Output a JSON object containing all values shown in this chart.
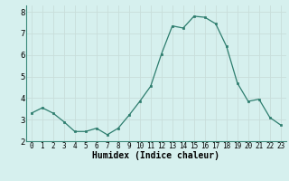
{
  "x": [
    0,
    1,
    2,
    3,
    4,
    5,
    6,
    7,
    8,
    9,
    10,
    11,
    12,
    13,
    14,
    15,
    16,
    17,
    18,
    19,
    20,
    21,
    22,
    23
  ],
  "y": [
    3.3,
    3.55,
    3.3,
    2.9,
    2.45,
    2.45,
    2.6,
    2.3,
    2.6,
    3.2,
    3.85,
    4.55,
    6.05,
    7.35,
    7.25,
    7.8,
    7.75,
    7.45,
    6.4,
    4.7,
    3.85,
    3.95,
    3.1,
    2.75
  ],
  "xlabel": "Humidex (Indice chaleur)",
  "ylim": [
    2.0,
    8.3
  ],
  "xlim": [
    -0.5,
    23.5
  ],
  "yticks": [
    2,
    3,
    4,
    5,
    6,
    7,
    8
  ],
  "xticks": [
    0,
    1,
    2,
    3,
    4,
    5,
    6,
    7,
    8,
    9,
    10,
    11,
    12,
    13,
    14,
    15,
    16,
    17,
    18,
    19,
    20,
    21,
    22,
    23
  ],
  "line_color": "#2d7d6e",
  "marker_color": "#2d7d6e",
  "bg_color": "#d6f0ee",
  "grid_color": "#c8deda",
  "xlabel_fontsize": 7,
  "tick_fontsize": 5.5,
  "ytick_fontsize": 6.5
}
